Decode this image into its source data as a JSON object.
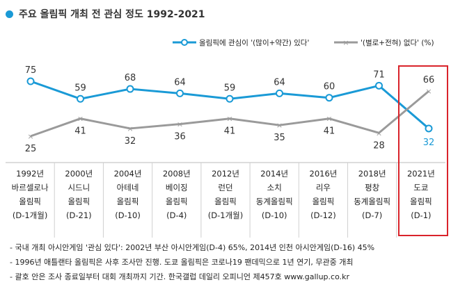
{
  "title": "주요 올림픽 개최 전 관심 정도 1992-2021",
  "colors": {
    "interest": "#1a9ad6",
    "nointerest": "#9a9a9a",
    "highlight": "#d9232a",
    "title_dot": "#1a9ad6"
  },
  "chart_data": {
    "type": "line",
    "title": "주요 올림픽 개최 전 관심 정도 1992-2021",
    "legend_position": "top-right",
    "grid": false,
    "categories": [
      [
        "1992년",
        "바르셀로나",
        "올림픽",
        "(D-1개월)"
      ],
      [
        "2000년",
        "시드니",
        "올림픽",
        "(D-21)"
      ],
      [
        "2004년",
        "아테네",
        "올림픽",
        "(D-10)"
      ],
      [
        "2008년",
        "베이징",
        "올림픽",
        "(D-4)"
      ],
      [
        "2012년",
        "런던",
        "올림픽",
        "(D-1개월)"
      ],
      [
        "2014년",
        "소치",
        "동계올림픽",
        "(D-10)"
      ],
      [
        "2016년",
        "리우",
        "올림픽",
        "(D-12)"
      ],
      [
        "2018년",
        "평창",
        "동계올림픽",
        "(D-7)"
      ],
      [
        "2021년",
        "도쿄",
        "올림픽",
        "(D-1)"
      ]
    ],
    "series": [
      {
        "name": "올림픽에 관심이 '(많이+약간) 있다'",
        "values": [
          75,
          59,
          68,
          64,
          59,
          64,
          60,
          71,
          32
        ]
      },
      {
        "name": "'(별로+전혀) 없다' (%)",
        "values": [
          25,
          41,
          32,
          36,
          41,
          35,
          41,
          28,
          66
        ]
      }
    ]
  },
  "notes": [
    "- 국내 개최 아시안게임 '관심 있다': 2002년 부산 아시안게임(D-4) 65%, 2014년 인천 아시안게임(D-16) 45%",
    "- 1996년 애틀랜타 올림픽은 사후 조사만 진행. 도쿄 올림픽은 코로나19 팬데믹으로 1년 연기, 무관중 개최",
    "- 괄호 안은 조사 종료일부터 대회 개최까지 기간. 한국갤럽 데일리 오피니언 제457호 www.gallup.co.kr"
  ]
}
